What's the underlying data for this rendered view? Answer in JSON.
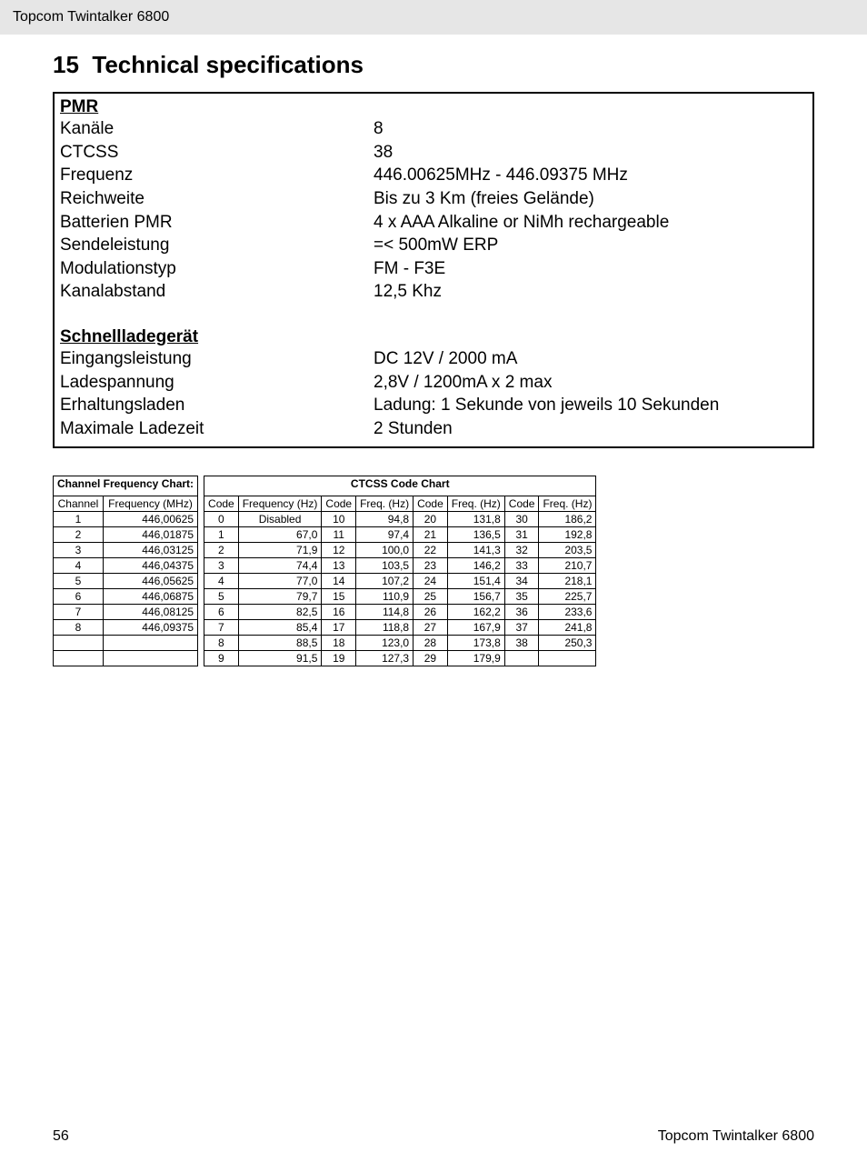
{
  "header": {
    "title": "Topcom Twintalker 6800"
  },
  "section": {
    "number": "15",
    "title": "Technical specifications"
  },
  "spec": {
    "pmr_title": "PMR",
    "pmr_rows": [
      {
        "label": "Kanäle",
        "value": "8"
      },
      {
        "label": "CTCSS",
        "value": "38"
      },
      {
        "label": "Frequenz",
        "value": "446.00625MHz - 446.09375 MHz"
      },
      {
        "label": "Reichweite",
        "value": "Bis zu 3 Km (freies Gelände)"
      },
      {
        "label": "Batterien PMR",
        "value": "4 x AAA Alkaline or NiMh rechargeable"
      },
      {
        "label": "Sendeleistung",
        "value": "=< 500mW ERP"
      },
      {
        "label": "Modulationstyp",
        "value": "FM - F3E"
      },
      {
        "label": "Kanalabstand",
        "value": "12,5 Khz"
      }
    ],
    "charger_title": "Schnellladegerät",
    "charger_rows": [
      {
        "label": "Eingangsleistung",
        "value": "DC 12V / 2000 mA"
      },
      {
        "label": "Ladespannung",
        "value": "2,8V / 1200mA x 2 max"
      },
      {
        "label": "Erhaltungsladen",
        "value": "Ladung: 1 Sekunde von jeweils 10 Sekunden"
      },
      {
        "label": "Maximale Ladezeit",
        "value": "2 Stunden"
      }
    ]
  },
  "channel_chart": {
    "title": "Channel Frequency Chart:",
    "col1": "Channel",
    "col2": "Frequency (MHz)",
    "rows": [
      {
        "ch": "1",
        "freq": "446,00625"
      },
      {
        "ch": "2",
        "freq": "446,01875"
      },
      {
        "ch": "3",
        "freq": "446,03125"
      },
      {
        "ch": "4",
        "freq": "446,04375"
      },
      {
        "ch": "5",
        "freq": "446,05625"
      },
      {
        "ch": "6",
        "freq": "446,06875"
      },
      {
        "ch": "7",
        "freq": "446,08125"
      },
      {
        "ch": "8",
        "freq": "446,09375"
      },
      {
        "ch": "",
        "freq": ""
      },
      {
        "ch": "",
        "freq": ""
      }
    ]
  },
  "ctcss_chart": {
    "title": "CTCSS Code Chart",
    "code_h": "Code",
    "freq_h": "Frequency (Hz)",
    "freq_h_short": "Freq. (Hz)",
    "rows": [
      {
        "c0": "0",
        "f0": "Disabled",
        "c1": "10",
        "f1": "94,8",
        "c2": "20",
        "f2": "131,8",
        "c3": "30",
        "f3": "186,2"
      },
      {
        "c0": "1",
        "f0": "67,0",
        "c1": "11",
        "f1": "97,4",
        "c2": "21",
        "f2": "136,5",
        "c3": "31",
        "f3": "192,8"
      },
      {
        "c0": "2",
        "f0": "71,9",
        "c1": "12",
        "f1": "100,0",
        "c2": "22",
        "f2": "141,3",
        "c3": "32",
        "f3": "203,5"
      },
      {
        "c0": "3",
        "f0": "74,4",
        "c1": "13",
        "f1": "103,5",
        "c2": "23",
        "f2": "146,2",
        "c3": "33",
        "f3": "210,7"
      },
      {
        "c0": "4",
        "f0": "77,0",
        "c1": "14",
        "f1": "107,2",
        "c2": "24",
        "f2": "151,4",
        "c3": "34",
        "f3": "218,1"
      },
      {
        "c0": "5",
        "f0": "79,7",
        "c1": "15",
        "f1": "110,9",
        "c2": "25",
        "f2": "156,7",
        "c3": "35",
        "f3": "225,7"
      },
      {
        "c0": "6",
        "f0": "82,5",
        "c1": "16",
        "f1": "114,8",
        "c2": "26",
        "f2": "162,2",
        "c3": "36",
        "f3": "233,6"
      },
      {
        "c0": "7",
        "f0": "85,4",
        "c1": "17",
        "f1": "118,8",
        "c2": "27",
        "f2": "167,9",
        "c3": "37",
        "f3": "241,8"
      },
      {
        "c0": "8",
        "f0": "88,5",
        "c1": "18",
        "f1": "123,0",
        "c2": "28",
        "f2": "173,8",
        "c3": "38",
        "f3": "250,3"
      },
      {
        "c0": "9",
        "f0": "91,5",
        "c1": "19",
        "f1": "127,3",
        "c2": "29",
        "f2": "179,9",
        "c3": "",
        "f3": ""
      }
    ]
  },
  "footer": {
    "page": "56",
    "product": "Topcom Twintalker 6800"
  }
}
